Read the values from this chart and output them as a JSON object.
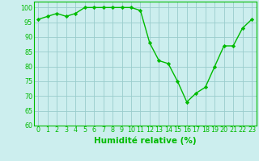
{
  "x": [
    0,
    1,
    2,
    3,
    4,
    5,
    6,
    7,
    8,
    9,
    10,
    11,
    12,
    13,
    14,
    15,
    16,
    17,
    18,
    19,
    20,
    21,
    22,
    23
  ],
  "y": [
    96,
    97,
    98,
    97,
    98,
    100,
    100,
    100,
    100,
    100,
    100,
    99,
    88,
    82,
    81,
    75,
    68,
    71,
    73,
    80,
    87,
    87,
    93,
    96
  ],
  "line_color": "#00bb00",
  "marker": "D",
  "marker_size": 2.2,
  "xlabel": "Humidité relative (%)",
  "xlabel_color": "#00bb00",
  "ylim": [
    60,
    102
  ],
  "xlim": [
    -0.5,
    23.5
  ],
  "yticks": [
    60,
    65,
    70,
    75,
    80,
    85,
    90,
    95,
    100
  ],
  "xticks": [
    0,
    1,
    2,
    3,
    4,
    5,
    6,
    7,
    8,
    9,
    10,
    11,
    12,
    13,
    14,
    15,
    16,
    17,
    18,
    19,
    20,
    21,
    22,
    23
  ],
  "grid_color": "#99cccc",
  "bg_color": "#cceeee",
  "tick_label_fontsize": 5.8,
  "xlabel_fontsize": 7.5,
  "linewidth": 1.0
}
